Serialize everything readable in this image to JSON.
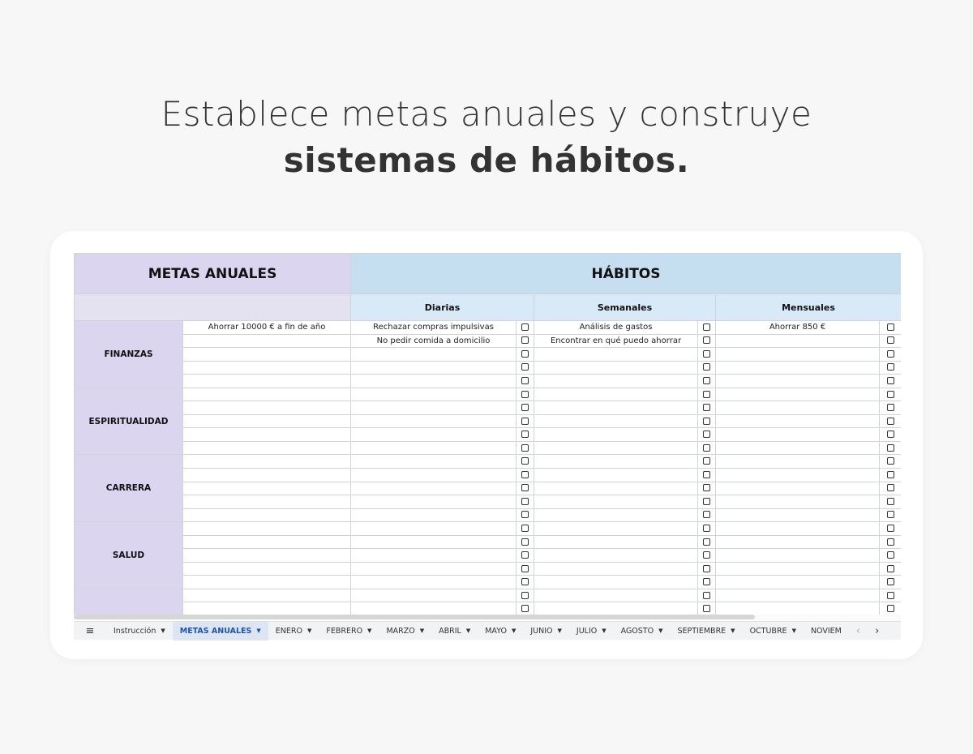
{
  "headline": {
    "line1": "Establece metas anuales y construye",
    "line2": "sistemas de hábitos."
  },
  "sheet": {
    "metas_title": "METAS ANUALES",
    "habitos_title": "HÁBITOS",
    "sub": {
      "diarias": "Diarias",
      "semanales": "Semanales",
      "mensuales": "Mensuales"
    },
    "categories": [
      "FINANZAS",
      "ESPIRITUALIDAD",
      "CARRERA",
      "SALUD",
      ""
    ],
    "rows": [
      {
        "goal": "Ahorrar 10000 € a fin de año",
        "daily": "Rechazar compras impulsivas",
        "weekly": "Análisis de gastos",
        "monthly": "Ahorrar 850 €"
      },
      {
        "goal": "",
        "daily": "No pedir comida a domicilio",
        "weekly": "Encontrar en qué puedo ahorrar",
        "monthly": ""
      }
    ],
    "row_count": 22,
    "checkbox_icon": "checkbox-unchecked-icon"
  },
  "tabs": {
    "menu_icon": "hamburger-menu-icon",
    "items": [
      "Instrucción",
      "METAS ANUALES",
      "ENERO",
      "FEBRERO",
      "MARZO",
      "ABRIL",
      "MAYO",
      "JUNIO",
      "JULIO",
      "AGOSTO",
      "SEPTIEMBRE",
      "OCTUBRE",
      "NOVIEM"
    ],
    "active": "METAS ANUALES"
  },
  "colors": {
    "lavender": "#dcd5f0",
    "blue": "#c5def0",
    "active_tab": "#1a56b0"
  }
}
